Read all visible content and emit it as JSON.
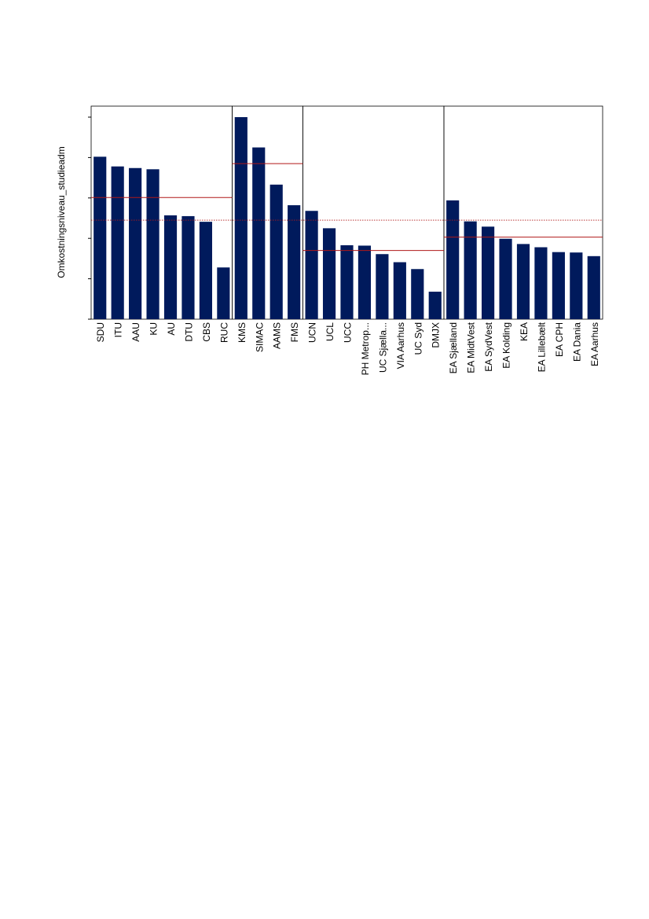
{
  "chart_data": {
    "type": "bar",
    "ylabel": "Omkostningsniveau_studieadm",
    "xlabel": "",
    "title": "",
    "ylim": [
      0,
      5.2
    ],
    "yticks": [
      0,
      1,
      2,
      3,
      4,
      5
    ],
    "ytick_labels_shown": false,
    "grid": false,
    "legend": "none",
    "colors": {
      "bar": "#001a5c",
      "reference_line": "#b01818",
      "panel_border": "#000000"
    },
    "overall_average": 2.45,
    "groups": [
      {
        "categories": [
          "SDU",
          "ITU",
          "AAU",
          "KU",
          "AU",
          "DTU",
          "CBS",
          "RUC"
        ],
        "values": [
          4.02,
          3.78,
          3.74,
          3.71,
          2.57,
          2.55,
          2.41,
          1.28
        ],
        "group_average": 3.01
      },
      {
        "categories": [
          "KMS",
          "SIMAC",
          "AAMS",
          "FMS"
        ],
        "values": [
          5.0,
          4.25,
          3.33,
          2.82
        ],
        "group_average": 3.85
      },
      {
        "categories": [
          "UCN",
          "UCL",
          "UCC",
          "PH Metrop...",
          "UC Sjælla...",
          "VIA Aarhus",
          "UC Syd",
          "DMJX"
        ],
        "values": [
          2.68,
          2.25,
          1.83,
          1.82,
          1.61,
          1.41,
          1.24,
          0.68
        ],
        "group_average": 1.7
      },
      {
        "categories": [
          "EA Sjælland",
          "EA MidtVest",
          "EA SydVest",
          "EA Kolding",
          "KEA",
          "EA Lillebælt",
          "EA CPH",
          "EA Dania",
          "EA Aarhus"
        ],
        "values": [
          2.94,
          2.42,
          2.29,
          1.99,
          1.86,
          1.78,
          1.66,
          1.65,
          1.56
        ],
        "group_average": 2.03
      }
    ]
  }
}
